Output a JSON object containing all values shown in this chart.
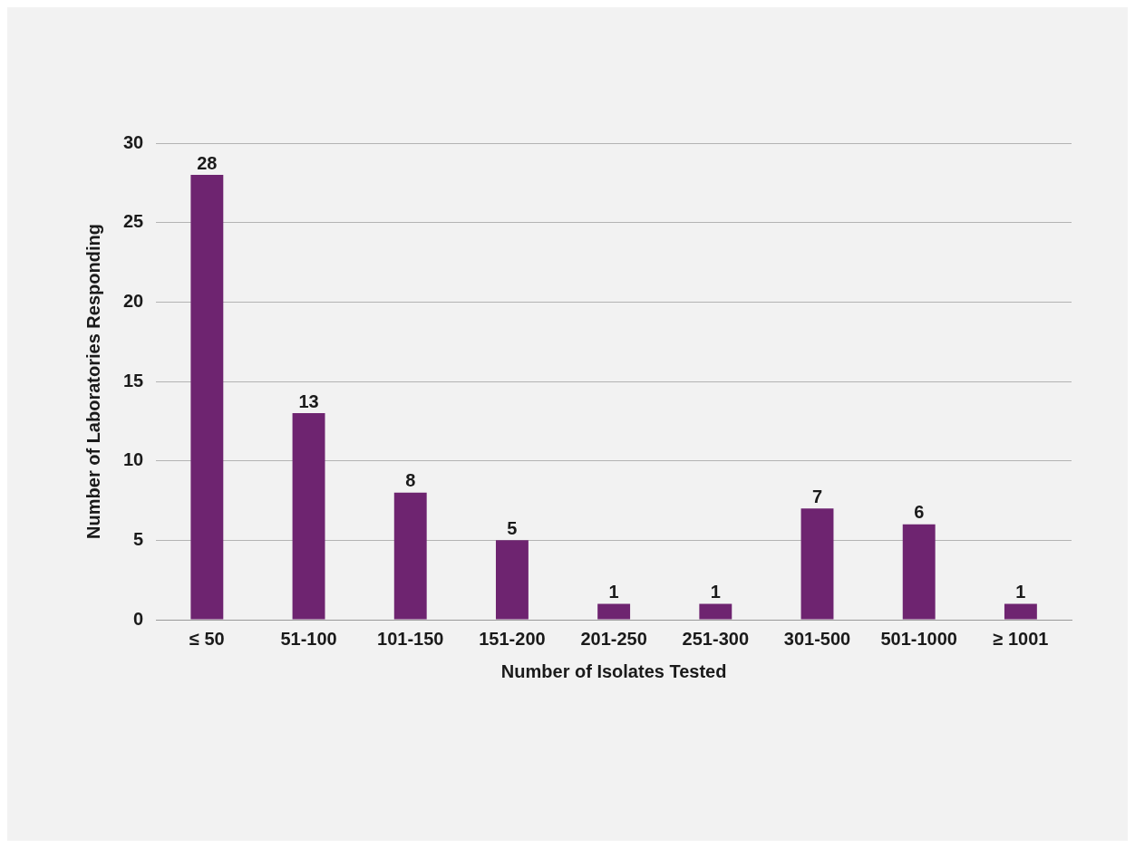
{
  "chart_data": {
    "type": "bar",
    "xlabel": "Number of Isolates Tested",
    "ylabel": "Number of Laboratories Responding",
    "categories": [
      "≤ 50",
      "51-100",
      "101-150",
      "151-200",
      "201-250",
      "251-300",
      "301-500",
      "501-1000",
      "≥ 1001"
    ],
    "values": [
      28,
      13,
      8,
      5,
      1,
      1,
      7,
      6,
      1
    ],
    "color": "#6e2470",
    "ylim": [
      0,
      30
    ],
    "yticks": [
      0,
      5,
      10,
      15,
      20,
      25,
      30
    ],
    "grid": "y",
    "data_labels": true,
    "legend": false
  }
}
